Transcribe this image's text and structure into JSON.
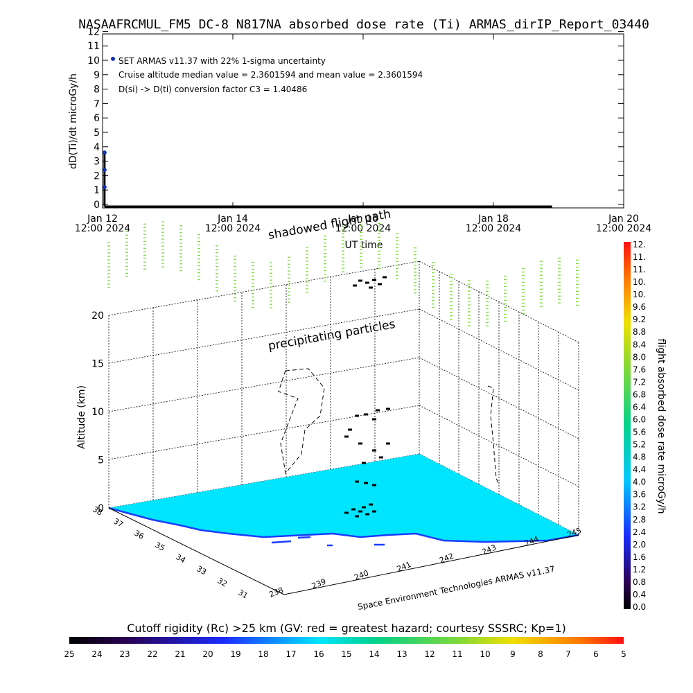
{
  "title": "NASAAFRCMUL_FM5 DC-8   N817NA absorbed dose rate (Ti) ARMAS_dirIP_Report_03440",
  "colors": {
    "axis": "#000000",
    "point": "#1030b0",
    "map_fill": "#00e5ff",
    "coast": "#1a3cff",
    "particles": "#7cd83a",
    "track": "#000000"
  },
  "chart_data": [
    {
      "type": "line",
      "ylabel": "dD(Ti)/dt microGy/h",
      "xlabel": "UT time",
      "ylim": [
        0,
        12
      ],
      "yticks": [
        "0",
        "1",
        "2",
        "3",
        "4",
        "5",
        "6",
        "7",
        "8",
        "9",
        "10",
        "11",
        "12"
      ],
      "xticks": [
        {
          "line1": "Jan 12",
          "line2": "12:00 2024",
          "pos": 0.0
        },
        {
          "line1": "Jan 14",
          "line2": "12:00 2024",
          "pos": 0.25
        },
        {
          "line1": "Jan 16",
          "line2": "12:00 2024",
          "pos": 0.5
        },
        {
          "line1": "Jan 18",
          "line2": "12:00 2024",
          "pos": 0.75
        },
        {
          "line1": "Jan 20",
          "line2": "12:00 2024",
          "pos": 1.0
        }
      ],
      "series": [
        {
          "x_days": [
            0.03,
            0.03,
            0.03
          ],
          "y": [
            1.2,
            2.4,
            3.6
          ]
        }
      ],
      "baseline_x_end_days": 6.9,
      "legend_dot_y": 10.1,
      "annotations": [
        "SET ARMAS v11.37 with 22% 1-sigma uncertainty",
        "Cruise altitude median value = 2.3601594 and mean value = 2.3601594",
        "D(si) -> D(ti) conversion factor C3 = 1.40486"
      ]
    },
    {
      "type": "scatter",
      "ylabel": "Altitude (km)",
      "zticks": [
        "0",
        "5",
        "10",
        "15",
        "20"
      ],
      "lat_ticks": [
        "38",
        "37",
        "36",
        "35",
        "34",
        "33",
        "32",
        "31"
      ],
      "lon_ticks": [
        "238",
        "239",
        "240",
        "241",
        "242",
        "243",
        "244",
        "245"
      ],
      "labels": {
        "shadowed": "shadowed flight path",
        "precip": "precipitating particles",
        "credit": "Space Environment Technologies ARMAS v11.37"
      }
    },
    {
      "type": "heatmap",
      "colorbar_label": "flight absorbed dose rate microGy/h",
      "colorbar_ticks": [
        "12.",
        "11.",
        "11.",
        "10.",
        "10.",
        "9.6",
        "9.2",
        "8.8",
        "8.4",
        "8.0",
        "7.6",
        "7.2",
        "6.8",
        "6.4",
        "6.0",
        "5.6",
        "5.2",
        "4.8",
        "4.4",
        "4.0",
        "3.6",
        "3.2",
        "2.8",
        "2.4",
        "2.0",
        "1.6",
        "1.2",
        "0.8",
        "0.4",
        "0.0"
      ],
      "range": [
        0,
        12
      ]
    },
    {
      "type": "heatmap",
      "title": "Cutoff rigidity (Rc) >25 km (GV: red = greatest hazard; courtesy SSSRC; Kp=1)",
      "ticks": [
        "25",
        "24",
        "23",
        "22",
        "21",
        "20",
        "19",
        "18",
        "17",
        "16",
        "15",
        "14",
        "13",
        "12",
        "11",
        "10",
        "9",
        "8",
        "7",
        "6",
        "5"
      ]
    }
  ]
}
